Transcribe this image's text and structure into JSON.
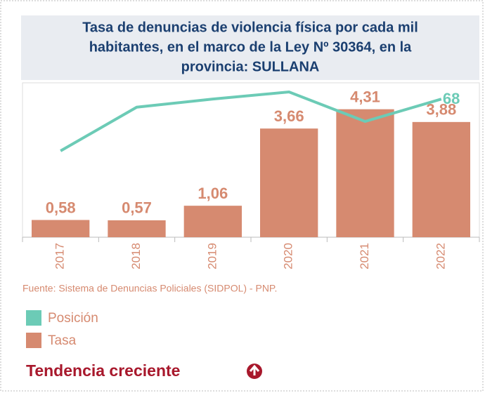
{
  "chart_data": {
    "type": "bar",
    "title": [
      "Tasa de denuncias de violencia física por cada mil",
      "habitantes, en el marco de la Ley Nº 30364, en la",
      "provincia: SULLANA"
    ],
    "categories": [
      "2017",
      "2018",
      "2019",
      "2020",
      "2021",
      "2022"
    ],
    "series": [
      {
        "name": "Posición",
        "type": "line",
        "axis": "y2",
        "color": "#6ccbb6",
        "values": [
          42.5,
          64,
          68,
          71.5,
          57,
          68
        ]
      },
      {
        "name": "Tasa",
        "type": "bar",
        "color": "#d68a70",
        "values": [
          0.58,
          0.57,
          1.06,
          3.66,
          4.31,
          3.88
        ],
        "value_labels": [
          "0,58",
          "0,57",
          "1,06",
          "3,66",
          "4,31",
          "3,88"
        ]
      }
    ],
    "ylim": [
      0,
      5.2
    ],
    "y2lim": [
      0,
      76
    ],
    "source": "Fuente: Sistema de Denuncias Policiales (SIDPOL) - PNP."
  },
  "trend": "Tendencia creciente"
}
